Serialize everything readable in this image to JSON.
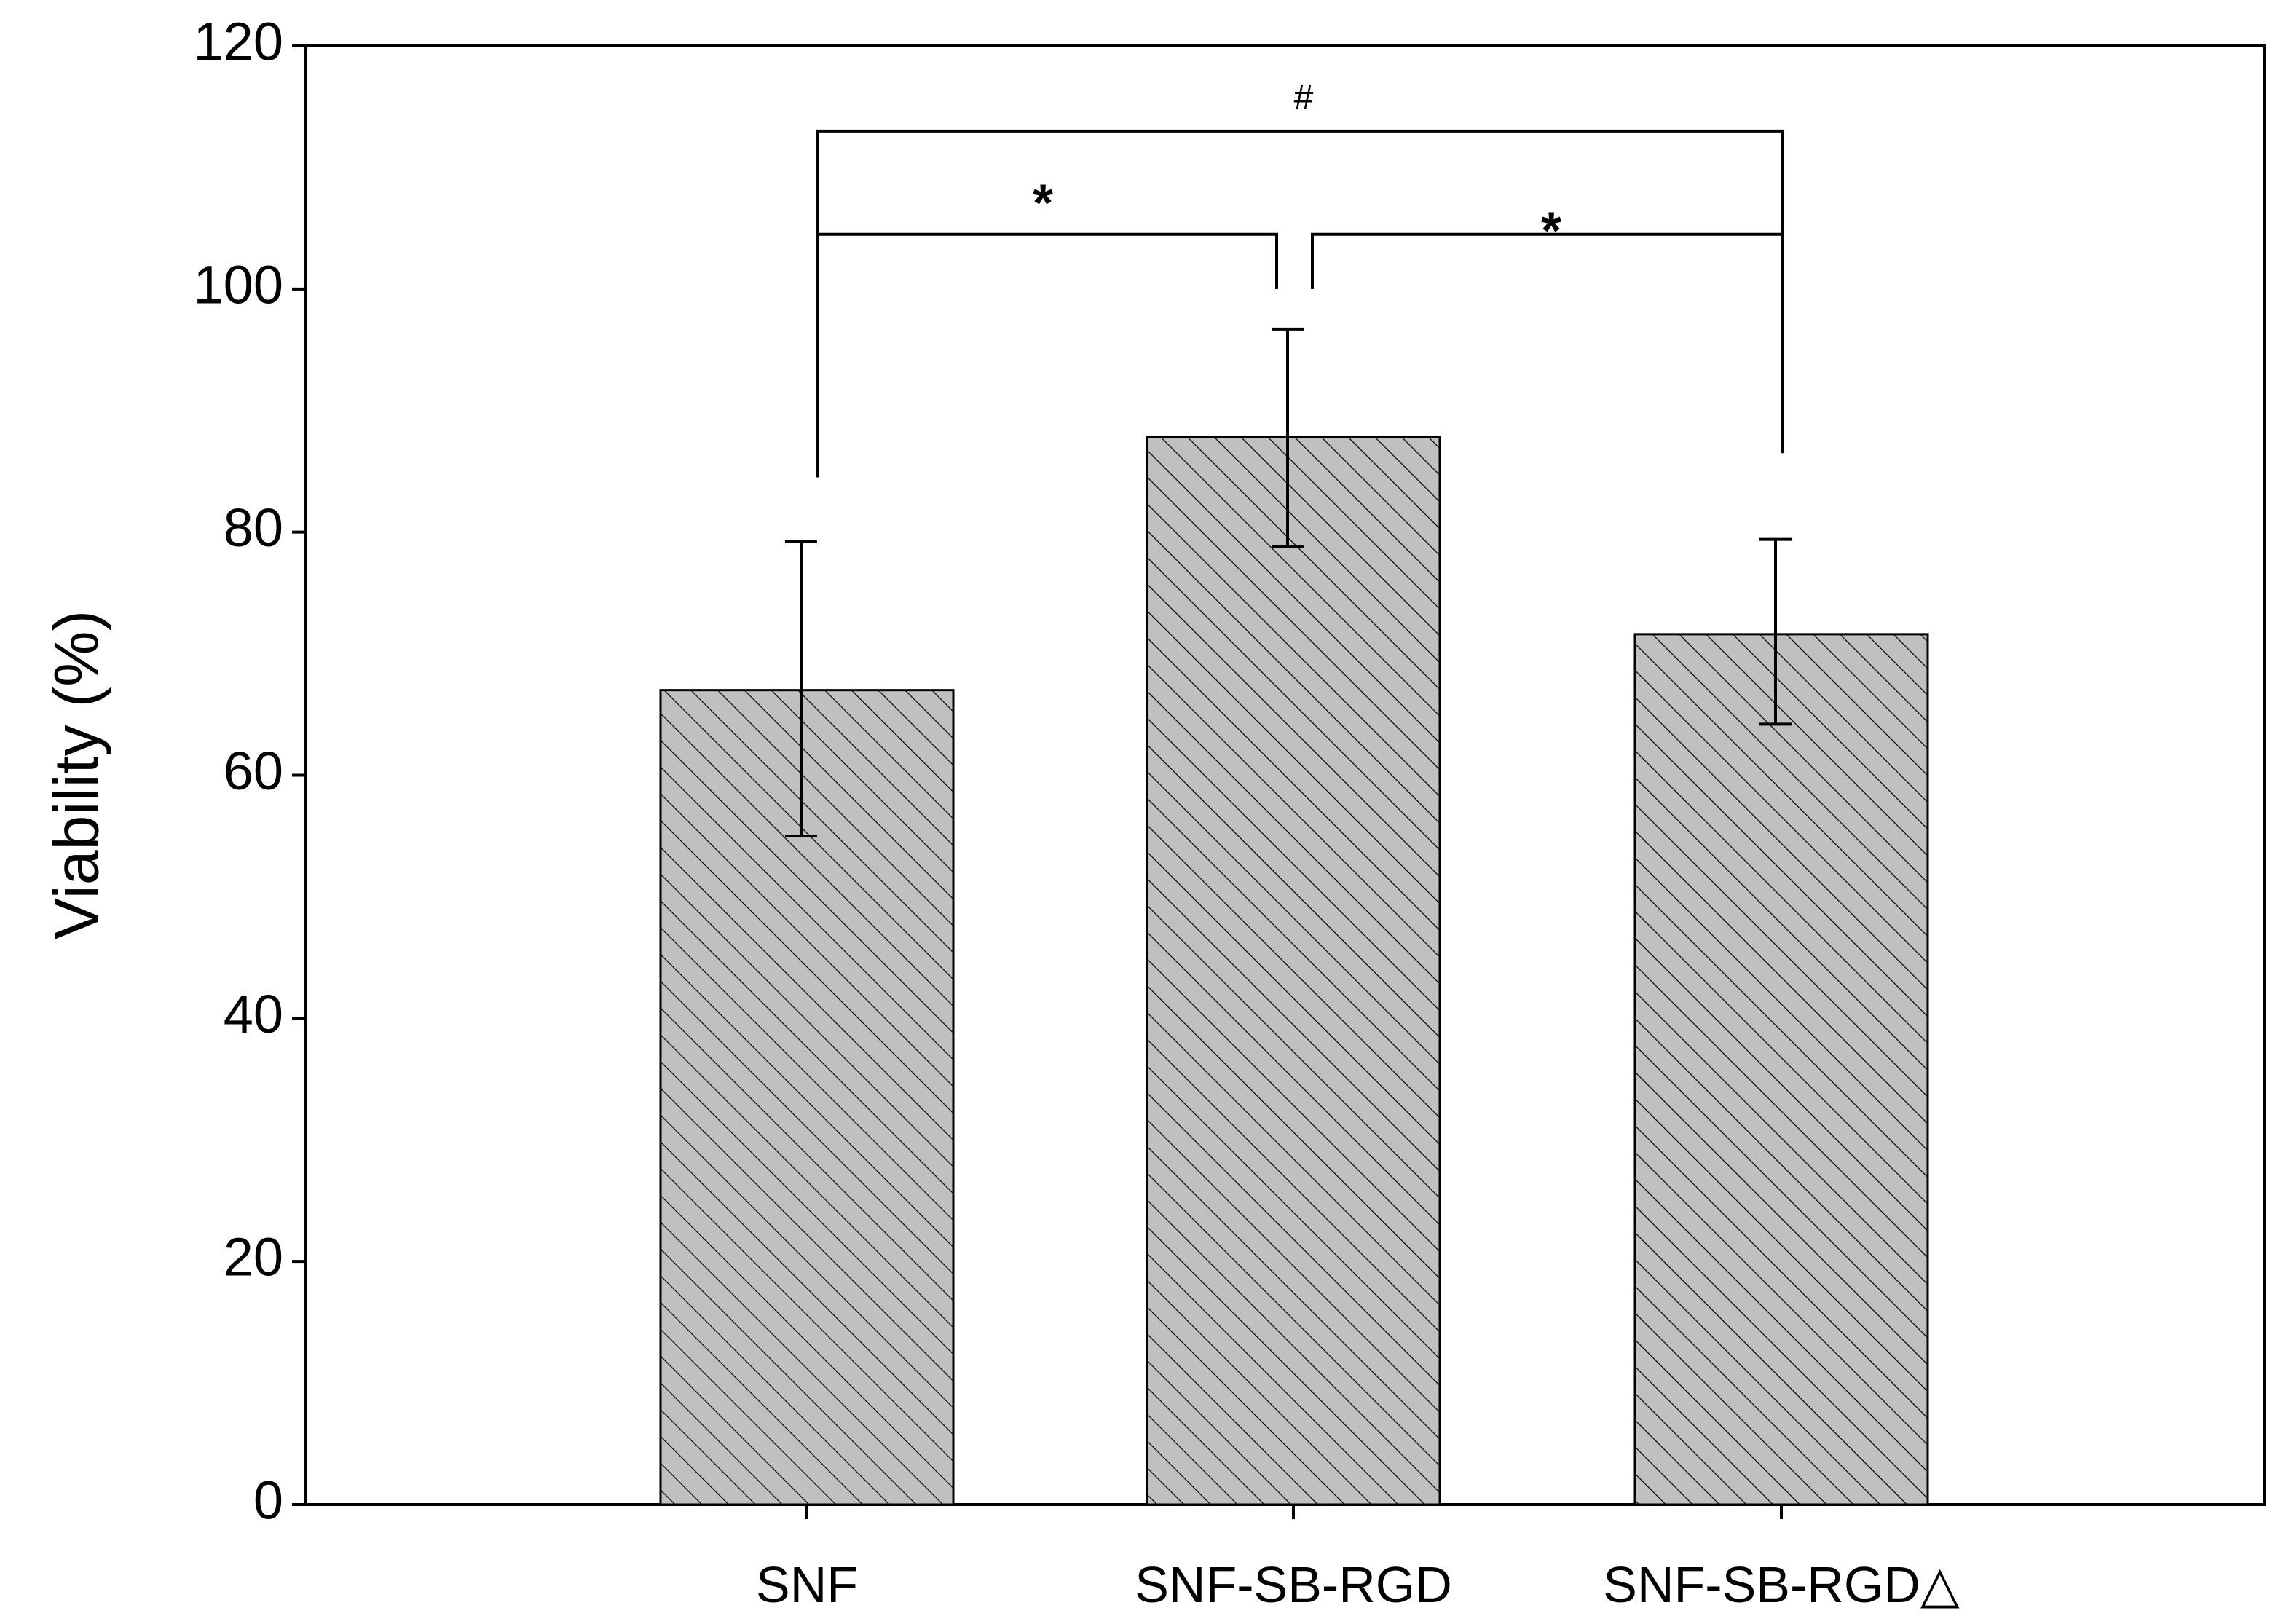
{
  "chart_data": {
    "type": "bar",
    "title": "",
    "xlabel": "",
    "ylabel": "Viability (%)",
    "ylim": [
      0,
      120
    ],
    "yticks": [
      0,
      20,
      40,
      60,
      80,
      100,
      120
    ],
    "grid": false,
    "legend": "none",
    "categories": [
      "SNF",
      "SNF-SB-RGD",
      "SNF-SB-RGD△"
    ],
    "values": [
      67,
      87.8,
      71.6
    ],
    "error_low": [
      55,
      78.8,
      64.2
    ],
    "error_high": [
      79.2,
      96.7,
      79.4
    ],
    "bar_fill": "#c0c0c0",
    "bar_hatch": "diagonal",
    "significance": [
      {
        "from": 0,
        "to": 1,
        "label": "*",
        "y": 104.5
      },
      {
        "from": 1,
        "to": 2,
        "label": "*",
        "y": 104.5
      },
      {
        "from": 0,
        "to": 2,
        "label": "#",
        "y": 113
      }
    ]
  }
}
